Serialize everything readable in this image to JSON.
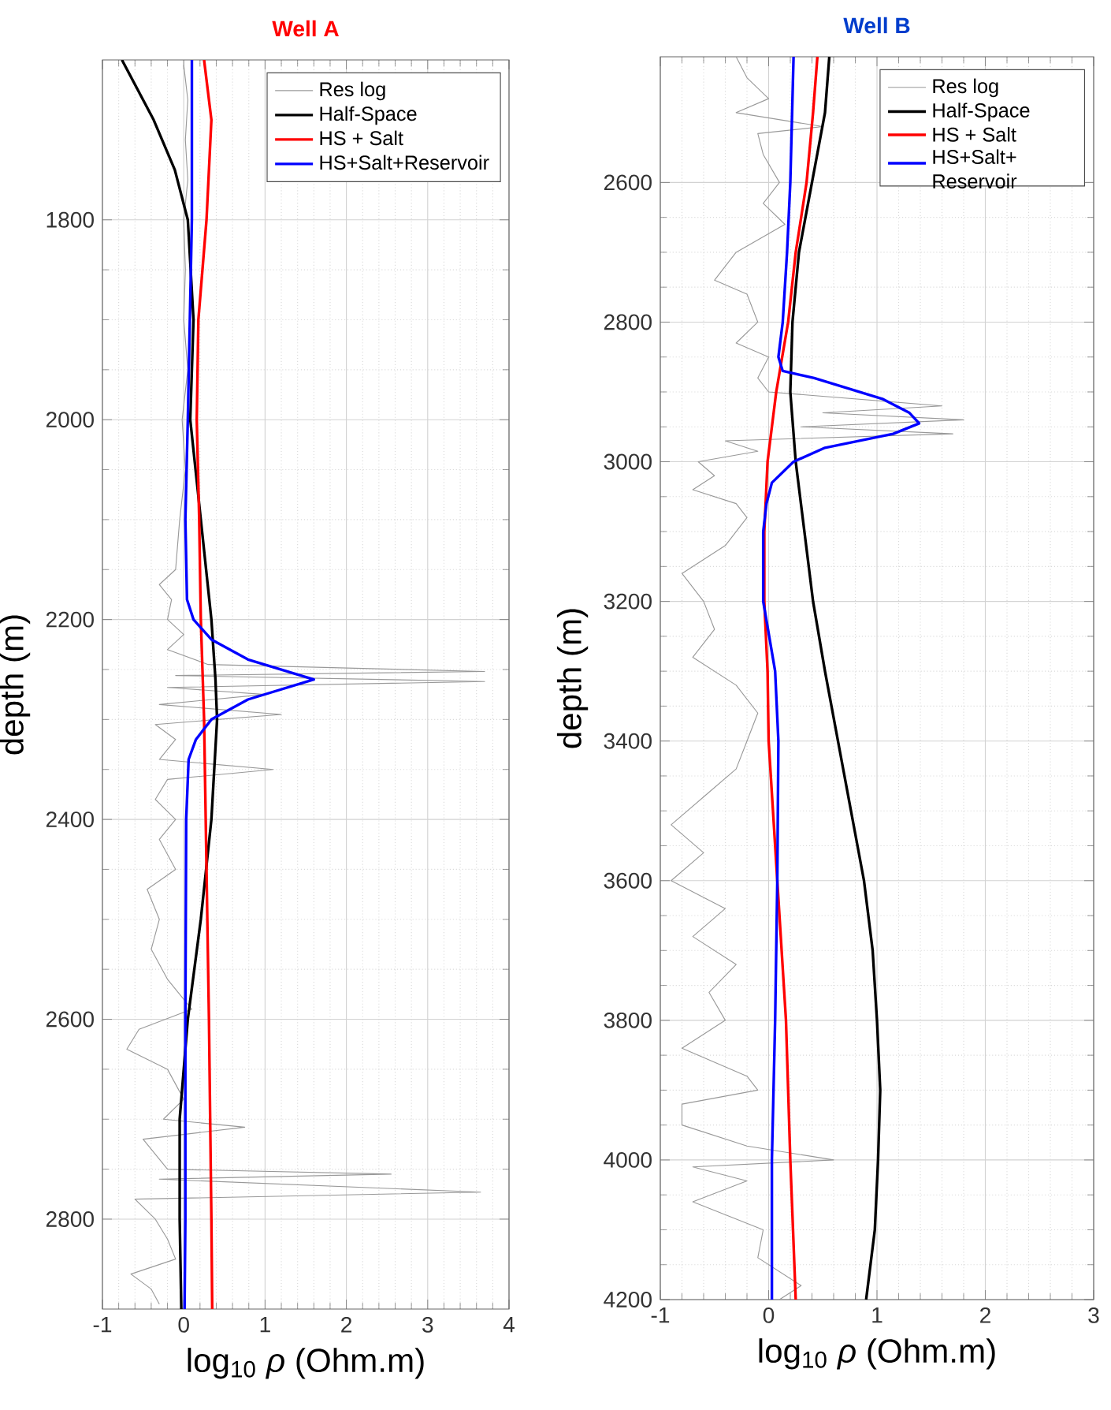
{
  "chart_data": [
    {
      "type": "line",
      "title": "Well A",
      "xlabel": "log$_{10}$ *ρ* (Ohm.m)",
      "ylabel": "depth (m)",
      "xlim": [
        -1,
        4
      ],
      "xticks": [
        -1,
        0,
        1,
        2,
        3,
        4
      ],
      "ylim": [
        2890,
        1640
      ],
      "yticks": [
        1800,
        2000,
        2200,
        2400,
        2600,
        2800
      ],
      "grid": true,
      "legend": "top right",
      "series": [
        {
          "name": "Res log",
          "color": "#999999",
          "x": [
            0.0,
            0.05,
            0.02,
            0.05,
            0.0,
            0.02,
            0.0,
            0.05,
            -0.02,
            0.02,
            -0.05,
            -0.1,
            -0.3,
            -0.15,
            -0.2,
            0.0,
            -0.2,
            0.3,
            3.7,
            -0.1,
            3.7,
            -0.2,
            1.0,
            -0.3,
            1.2,
            -0.35,
            -0.1,
            -0.3,
            1.1,
            -0.2,
            -0.35,
            -0.1,
            -0.3,
            -0.1,
            -0.45,
            -0.3,
            -0.4,
            -0.2,
            0.1,
            -0.55,
            -0.7,
            -0.2,
            0.0,
            -0.25,
            0.75,
            -0.5,
            -0.2,
            2.55,
            -0.3,
            3.65,
            -0.6,
            -0.35,
            -0.2,
            -0.1,
            -0.65,
            -0.4,
            -0.3
          ],
          "values": [
            1645,
            1680,
            1720,
            1760,
            1800,
            1850,
            1900,
            1950,
            2000,
            2050,
            2100,
            2150,
            2165,
            2180,
            2200,
            2215,
            2230,
            2245,
            2252,
            2256,
            2262,
            2268,
            2275,
            2285,
            2295,
            2305,
            2320,
            2340,
            2350,
            2360,
            2380,
            2400,
            2420,
            2450,
            2470,
            2500,
            2530,
            2560,
            2590,
            2610,
            2630,
            2650,
            2680,
            2700,
            2708,
            2720,
            2750,
            2755,
            2760,
            2773,
            2780,
            2800,
            2820,
            2840,
            2855,
            2870,
            2885
          ]
        },
        {
          "name": "Half-Space",
          "color": "#000000",
          "x": [
            -0.76,
            -0.37,
            -0.11,
            0.05,
            0.12,
            0.08,
            0.34,
            0.39,
            0.41,
            0.34,
            0.21,
            0.05,
            -0.05,
            -0.05,
            -0.03
          ],
          "values": [
            1640,
            1700,
            1750,
            1800,
            1900,
            2000,
            2200,
            2260,
            2300,
            2400,
            2500,
            2600,
            2700,
            2800,
            2890
          ]
        },
        {
          "name": "HS + Salt",
          "color": "#ff0000",
          "x": [
            0.25,
            0.34,
            0.28,
            0.18,
            0.16,
            0.19,
            0.21,
            0.25,
            0.27,
            0.31,
            0.34,
            0.35
          ],
          "values": [
            1640,
            1700,
            1800,
            1900,
            2000,
            2100,
            2200,
            2300,
            2400,
            2600,
            2800,
            2890
          ]
        },
        {
          "name": "HS+Salt+Reservoir",
          "color": "#0000ff",
          "x": [
            0.1,
            0.1,
            0.05,
            0.02,
            0.04,
            0.12,
            0.34,
            0.79,
            1.6,
            0.79,
            0.34,
            0.15,
            0.06,
            0.03,
            0.02,
            0.02,
            0.01
          ],
          "values": [
            1640,
            1800,
            2000,
            2100,
            2180,
            2200,
            2220,
            2240,
            2260,
            2280,
            2300,
            2320,
            2340,
            2400,
            2600,
            2800,
            2890
          ]
        }
      ]
    },
    {
      "type": "line",
      "title": "Well B",
      "xlabel": "log$_{10}$ *ρ* (Ohm.m)",
      "ylabel": "depth (m)",
      "xlim": [
        -1,
        3
      ],
      "xticks": [
        -1,
        0,
        1,
        2,
        3
      ],
      "ylim": [
        4200,
        2420
      ],
      "yticks": [
        2600,
        2800,
        3000,
        3200,
        3400,
        3600,
        3800,
        4000,
        4200
      ],
      "grid": true,
      "legend": "top right",
      "series": [
        {
          "name": "Res log",
          "color": "#999999",
          "x": [
            -0.3,
            -0.2,
            0.0,
            -0.3,
            0.5,
            -0.1,
            -0.05,
            0.1,
            -0.05,
            0.15,
            -0.3,
            -0.5,
            -0.2,
            -0.1,
            -0.3,
            0.0,
            -0.1,
            0.0,
            1.6,
            0.5,
            1.8,
            0.3,
            1.7,
            -0.4,
            -0.1,
            -0.65,
            -0.5,
            -0.7,
            -0.3,
            -0.2,
            -0.4,
            -0.8,
            -0.6,
            -0.5,
            -0.7,
            -0.3,
            -0.1,
            -0.2,
            -0.3,
            -0.6,
            -0.9,
            -0.6,
            -0.9,
            -0.4,
            -0.7,
            -0.3,
            -0.55,
            -0.4,
            -0.8,
            -0.2,
            -0.1,
            -0.8,
            -0.8,
            -0.2,
            0.6,
            -0.7,
            -0.2,
            -0.7,
            -0.05,
            -0.1,
            0.3,
            0.1
          ],
          "values": [
            2420,
            2450,
            2480,
            2500,
            2520,
            2530,
            2560,
            2600,
            2630,
            2660,
            2700,
            2740,
            2760,
            2800,
            2830,
            2850,
            2880,
            2900,
            2920,
            2930,
            2940,
            2950,
            2960,
            2970,
            2985,
            3000,
            3020,
            3040,
            3060,
            3080,
            3120,
            3160,
            3200,
            3240,
            3280,
            3320,
            3360,
            3400,
            3440,
            3480,
            3520,
            3560,
            3600,
            3640,
            3680,
            3720,
            3760,
            3800,
            3840,
            3880,
            3900,
            3920,
            3950,
            3980,
            4000,
            4010,
            4030,
            4060,
            4100,
            4140,
            4180,
            4200
          ]
        },
        {
          "name": "Half-Space",
          "color": "#000000",
          "x": [
            0.56,
            0.52,
            0.4,
            0.28,
            0.22,
            0.2,
            0.25,
            0.33,
            0.41,
            0.52,
            0.64,
            0.76,
            0.88,
            0.96,
            1.0,
            1.03,
            1.01,
            0.98,
            0.9
          ],
          "values": [
            2420,
            2500,
            2600,
            2700,
            2800,
            2900,
            3000,
            3100,
            3200,
            3300,
            3400,
            3500,
            3600,
            3700,
            3800,
            3900,
            4000,
            4100,
            4200
          ]
        },
        {
          "name": "HS + Salt",
          "color": "#ff0000",
          "x": [
            0.45,
            0.41,
            0.35,
            0.25,
            0.18,
            0.07,
            -0.01,
            -0.04,
            -0.04,
            -0.01,
            0.0,
            0.08,
            0.16,
            0.2,
            0.25
          ],
          "values": [
            2420,
            2500,
            2600,
            2700,
            2800,
            2900,
            3000,
            3100,
            3200,
            3300,
            3400,
            3600,
            3800,
            4000,
            4200
          ]
        },
        {
          "name": "HS+Salt+ Reservoir",
          "color": "#0000ff",
          "x": [
            0.23,
            0.2,
            0.17,
            0.13,
            0.09,
            0.13,
            0.42,
            1.05,
            1.3,
            1.39,
            1.15,
            0.52,
            0.23,
            0.03,
            -0.02,
            -0.05,
            -0.05,
            0.06,
            0.09,
            0.08,
            0.06,
            0.03,
            0.03
          ],
          "values": [
            2420,
            2600,
            2700,
            2800,
            2850,
            2870,
            2880,
            2910,
            2930,
            2945,
            2960,
            2980,
            3000,
            3030,
            3060,
            3100,
            3200,
            3300,
            3400,
            3600,
            3800,
            4000,
            4200
          ]
        }
      ]
    }
  ]
}
